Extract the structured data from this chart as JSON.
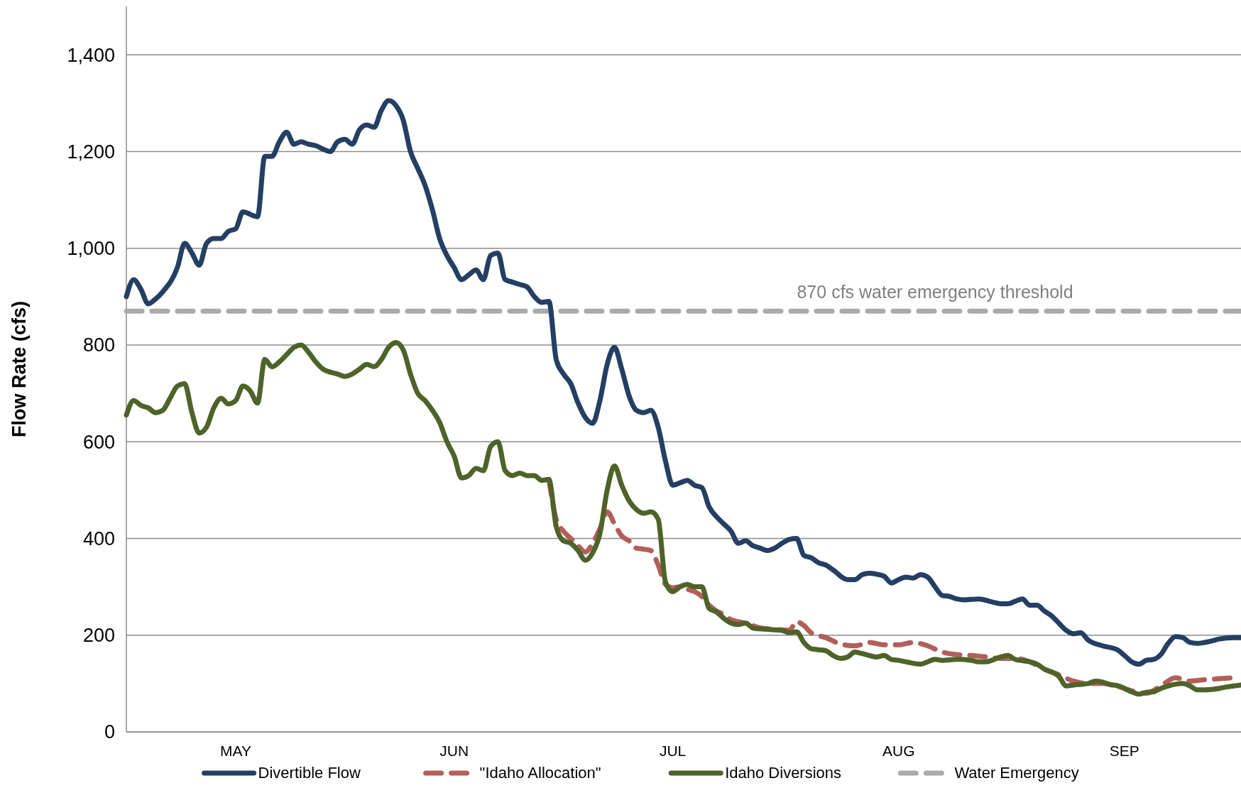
{
  "chart_data": {
    "type": "line",
    "ylabel": "Flow Rate (cfs)",
    "xlim": [
      "--05-01",
      "--10-01"
    ],
    "xticks": [
      {
        "value": "--05-16",
        "label": "MAY"
      },
      {
        "value": "--06-15",
        "label": "JUN"
      },
      {
        "value": "--07-15",
        "label": "JUL"
      },
      {
        "value": "--08-15",
        "label": "AUG"
      },
      {
        "value": "--09-15",
        "label": "SEP"
      }
    ],
    "ylim": [
      0,
      1500
    ],
    "yticks": [
      {
        "value": 0,
        "label": "0"
      },
      {
        "value": 200,
        "label": "200"
      },
      {
        "value": 400,
        "label": "400"
      },
      {
        "value": 600,
        "label": "600"
      },
      {
        "value": 800,
        "label": "800"
      },
      {
        "value": 1000,
        "label": "1,000"
      },
      {
        "value": 1200,
        "label": "1,200"
      },
      {
        "value": 1400,
        "label": "1,400"
      }
    ],
    "grid": "y",
    "legend": "bottom",
    "marker": "none",
    "annotations": [
      {
        "text": "870 cfs water emergency threshold",
        "x": "--08-20",
        "y": 870
      }
    ],
    "series": [
      {
        "name": "Divertible Flow",
        "color": "#243f63",
        "line_style": "solid",
        "x": [
          "--05-01",
          "--05-02",
          "--05-03",
          "--05-04",
          "--05-05",
          "--05-06",
          "--05-08",
          "--05-09",
          "--05-10",
          "--05-11",
          "--05-12",
          "--05-13",
          "--05-14",
          "--05-15",
          "--05-16",
          "--05-17",
          "--05-19",
          "--05-20",
          "--05-21",
          "--05-22",
          "--05-23",
          "--05-24",
          "--05-25",
          "--05-26",
          "--05-27",
          "--05-28",
          "--05-29",
          "--05-30",
          "--05-31",
          "--06-01",
          "--06-02",
          "--06-03",
          "--06-04",
          "--06-05",
          "--06-06",
          "--06-07",
          "--06-08",
          "--06-09",
          "--06-10",
          "--06-11",
          "--06-12",
          "--06-13",
          "--06-14",
          "--06-15",
          "--06-16",
          "--06-17",
          "--06-18",
          "--06-19",
          "--06-20",
          "--06-21",
          "--06-22",
          "--06-23",
          "--06-24",
          "--06-25",
          "--06-26",
          "--06-27",
          "--06-28",
          "--06-29",
          "--06-30",
          "--07-01",
          "--07-02",
          "--07-03",
          "--07-04",
          "--07-05",
          "--07-06",
          "--07-07",
          "--07-08",
          "--07-09",
          "--07-10",
          "--07-11",
          "--07-12",
          "--07-13",
          "--07-14",
          "--07-15",
          "--07-16",
          "--07-17",
          "--07-18",
          "--07-19",
          "--07-20",
          "--07-21",
          "--07-22",
          "--07-23",
          "--07-24",
          "--07-25",
          "--07-26",
          "--07-27",
          "--07-28",
          "--07-29",
          "--07-30",
          "--07-31",
          "--08-01",
          "--08-02",
          "--08-03",
          "--08-04",
          "--08-05",
          "--08-06",
          "--08-08",
          "--08-09",
          "--08-10",
          "--08-11",
          "--08-12",
          "--08-13",
          "--08-14",
          "--08-15",
          "--08-16",
          "--08-17",
          "--08-18",
          "--08-19",
          "--08-20",
          "--08-21",
          "--08-22",
          "--08-23",
          "--08-24",
          "--08-26",
          "--08-28",
          "--08-29",
          "--08-30",
          "--08-31",
          "--09-01",
          "--09-02",
          "--09-03",
          "--09-04",
          "--09-05",
          "--09-06",
          "--09-07",
          "--09-08",
          "--09-09",
          "--09-10",
          "--09-12",
          "--09-14",
          "--09-15",
          "--09-16",
          "--09-17",
          "--09-18",
          "--09-19",
          "--09-20",
          "--09-21",
          "--09-22",
          "--09-23",
          "--09-24",
          "--09-25",
          "--09-26",
          "--09-27",
          "--09-28",
          "--09-29",
          "--09-30",
          "--10-01"
        ],
        "values": [
          900,
          935,
          915,
          885,
          895,
          910,
          960,
          1010,
          990,
          965,
          1010,
          1020,
          1020,
          1035,
          1040,
          1075,
          1065,
          1190,
          1190,
          1220,
          1240,
          1215,
          1220,
          1215,
          1212,
          1205,
          1200,
          1220,
          1225,
          1215,
          1245,
          1255,
          1250,
          1285,
          1305,
          1295,
          1265,
          1200,
          1165,
          1130,
          1080,
          1020,
          985,
          960,
          935,
          945,
          955,
          935,
          985,
          990,
          935,
          930,
          925,
          920,
          900,
          888,
          890,
          770,
          740,
          720,
          680,
          650,
          638,
          685,
          760,
          795,
          750,
          695,
          665,
          660,
          665,
          630,
          560,
          510,
          515,
          520,
          510,
          505,
          465,
          445,
          430,
          415,
          390,
          395,
          385,
          380,
          375,
          380,
          390,
          398,
          400,
          365,
          360,
          350,
          345,
          335,
          315,
          315,
          325,
          328,
          326,
          322,
          308,
          315,
          320,
          318,
          325,
          320,
          300,
          282,
          280,
          275,
          273,
          275,
          268,
          265,
          265,
          270,
          275,
          262,
          262,
          250,
          240,
          225,
          210,
          203,
          205,
          190,
          178,
          170,
          158,
          145,
          140,
          148,
          150,
          160,
          183,
          197,
          195,
          185,
          183,
          185,
          188,
          192,
          194,
          195,
          195
        ]
      },
      {
        "name": "\"Idaho Allocation\"",
        "color": "#b25f5a",
        "line_style": "dashed",
        "x": [
          "--06-28",
          "--06-29",
          "--06-30",
          "--07-01",
          "--07-02",
          "--07-03",
          "--07-04",
          "--07-05",
          "--07-06",
          "--07-07",
          "--07-08",
          "--07-09",
          "--07-10",
          "--07-11",
          "--07-12",
          "--07-13",
          "--07-14",
          "--07-15",
          "--07-16",
          "--07-17",
          "--07-18",
          "--07-19",
          "--07-20",
          "--07-21",
          "--07-22",
          "--07-23",
          "--07-24",
          "--07-25",
          "--07-27",
          "--07-29",
          "--07-31",
          "--08-01",
          "--08-02",
          "--08-03",
          "--08-05",
          "--08-07",
          "--08-09",
          "--08-11",
          "--08-13",
          "--08-15",
          "--08-17",
          "--08-19",
          "--08-21",
          "--08-23",
          "--08-25",
          "--08-27",
          "--08-29",
          "--08-31",
          "--09-02",
          "--09-04",
          "--09-06",
          "--09-08",
          "--09-10",
          "--09-12",
          "--09-14",
          "--09-16",
          "--09-18",
          "--09-20",
          "--09-22",
          "--09-24",
          "--09-26",
          "--09-28",
          "--09-30"
        ],
        "values": [
          522,
          440,
          415,
          400,
          385,
          372,
          390,
          420,
          455,
          430,
          405,
          395,
          380,
          378,
          375,
          345,
          305,
          298,
          300,
          295,
          290,
          280,
          262,
          250,
          243,
          232,
          228,
          225,
          215,
          212,
          210,
          228,
          220,
          205,
          195,
          182,
          178,
          185,
          180,
          180,
          185,
          178,
          165,
          160,
          158,
          155,
          152,
          152,
          145,
          130,
          118,
          105,
          100,
          100,
          95,
          85,
          80,
          95,
          112,
          105,
          108,
          110,
          112
        ]
      },
      {
        "name": "Idaho Diversions",
        "color": "#4e6329",
        "line_style": "solid",
        "x": [
          "--05-01",
          "--05-02",
          "--05-03",
          "--05-04",
          "--05-05",
          "--05-06",
          "--05-07",
          "--05-08",
          "--05-09",
          "--05-10",
          "--05-11",
          "--05-12",
          "--05-13",
          "--05-14",
          "--05-15",
          "--05-16",
          "--05-17",
          "--05-18",
          "--05-19",
          "--05-20",
          "--05-21",
          "--05-22",
          "--05-23",
          "--05-24",
          "--05-25",
          "--05-26",
          "--05-27",
          "--05-28",
          "--05-30",
          "--05-31",
          "--06-01",
          "--06-02",
          "--06-03",
          "--06-04",
          "--06-05",
          "--06-06",
          "--06-07",
          "--06-08",
          "--06-09",
          "--06-10",
          "--06-11",
          "--06-12",
          "--06-13",
          "--06-14",
          "--06-15",
          "--06-16",
          "--06-17",
          "--06-18",
          "--06-19",
          "--06-20",
          "--06-21",
          "--06-22",
          "--06-23",
          "--06-24",
          "--06-25",
          "--06-26",
          "--06-27",
          "--06-28",
          "--06-29",
          "--06-30",
          "--07-01",
          "--07-02",
          "--07-03",
          "--07-04",
          "--07-05",
          "--07-06",
          "--07-07",
          "--07-08",
          "--07-09",
          "--07-10",
          "--07-11",
          "--07-12",
          "--07-13",
          "--07-14",
          "--07-15",
          "--07-16",
          "--07-17",
          "--07-18",
          "--07-19",
          "--07-20",
          "--07-21",
          "--07-22",
          "--07-23",
          "--07-24",
          "--07-25",
          "--07-26",
          "--07-27",
          "--07-28",
          "--07-30",
          "--07-31",
          "--08-01",
          "--08-02",
          "--08-03",
          "--08-04",
          "--08-05",
          "--08-06",
          "--08-07",
          "--08-08",
          "--08-09",
          "--08-10",
          "--08-12",
          "--08-13",
          "--08-14",
          "--08-15",
          "--08-16",
          "--08-18",
          "--08-19",
          "--08-20",
          "--08-21",
          "--08-23",
          "--08-25",
          "--08-26",
          "--08-27",
          "--08-29",
          "--08-30",
          "--08-31",
          "--09-02",
          "--09-03",
          "--09-04",
          "--09-06",
          "--09-07",
          "--09-08",
          "--09-10",
          "--09-11",
          "--09-12",
          "--09-13",
          "--09-14",
          "--09-16",
          "--09-17",
          "--09-18",
          "--09-19",
          "--09-20",
          "--09-21",
          "--09-23",
          "--09-24",
          "--09-25",
          "--09-26",
          "--09-28",
          "--09-29",
          "--09-30",
          "--10-01"
        ],
        "values": [
          655,
          685,
          675,
          670,
          660,
          665,
          690,
          715,
          720,
          660,
          618,
          630,
          670,
          690,
          678,
          685,
          715,
          705,
          680,
          770,
          755,
          765,
          780,
          795,
          800,
          785,
          765,
          750,
          740,
          735,
          740,
          750,
          760,
          755,
          770,
          795,
          805,
          790,
          740,
          700,
          685,
          665,
          640,
          600,
          570,
          525,
          530,
          545,
          540,
          590,
          600,
          540,
          530,
          535,
          530,
          530,
          520,
          522,
          425,
          395,
          390,
          375,
          355,
          370,
          410,
          500,
          550,
          510,
          478,
          460,
          452,
          455,
          440,
          310,
          290,
          300,
          305,
          300,
          300,
          255,
          248,
          235,
          225,
          222,
          225,
          215,
          213,
          212,
          210,
          205,
          207,
          185,
          172,
          170,
          168,
          158,
          152,
          155,
          165,
          162,
          155,
          158,
          150,
          148,
          145,
          140,
          145,
          150,
          148,
          150,
          148,
          145,
          145,
          155,
          158,
          150,
          145,
          140,
          130,
          115,
          95,
          97,
          100,
          105,
          103,
          98,
          96,
          83,
          78,
          82,
          83,
          90,
          95,
          100,
          95,
          87,
          87,
          90,
          93,
          95,
          97
        ]
      },
      {
        "name": "Water Emergency",
        "color": "#aaaaaa",
        "line_style": "dashed",
        "x": [
          "--05-01",
          "--10-01"
        ],
        "values": [
          870,
          870
        ]
      }
    ]
  }
}
